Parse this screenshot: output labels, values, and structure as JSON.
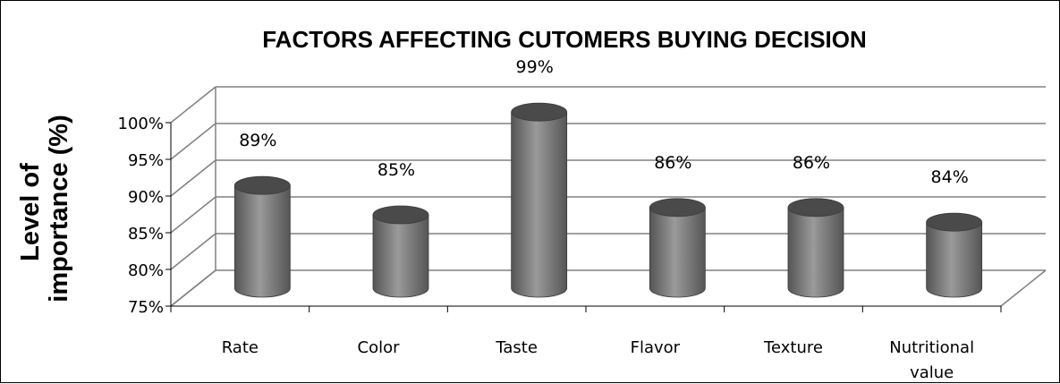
{
  "chart_data": {
    "type": "bar",
    "title": "FACTORS AFFECTING CUTOMERS BUYING DECISION",
    "ylabel_lines": [
      "Level of",
      "importance (%)"
    ],
    "xlabel": "",
    "categories": [
      [
        "Rate"
      ],
      [
        "Color"
      ],
      [
        "Taste"
      ],
      [
        "Flavor"
      ],
      [
        "Texture"
      ],
      [
        "Nutritional",
        "value"
      ]
    ],
    "values": [
      89,
      85,
      99,
      86,
      86,
      84
    ],
    "data_labels": [
      "89%",
      "85%",
      "99%",
      "86%",
      "86%",
      "84%"
    ],
    "ylim": [
      75,
      100
    ],
    "yticks": [
      75,
      80,
      85,
      90,
      95,
      100
    ],
    "ytick_labels": [
      "75%",
      "80%",
      "85%",
      "90%",
      "95%",
      "100%"
    ],
    "grid": true,
    "legend": "none",
    "shape": "3d-cylinder",
    "colors": {
      "bar_dark": "#555555",
      "bar_light": "#9a9a9a",
      "bar_top": "#4a4a4a",
      "axis": "#808080",
      "grid": "#808080"
    }
  }
}
